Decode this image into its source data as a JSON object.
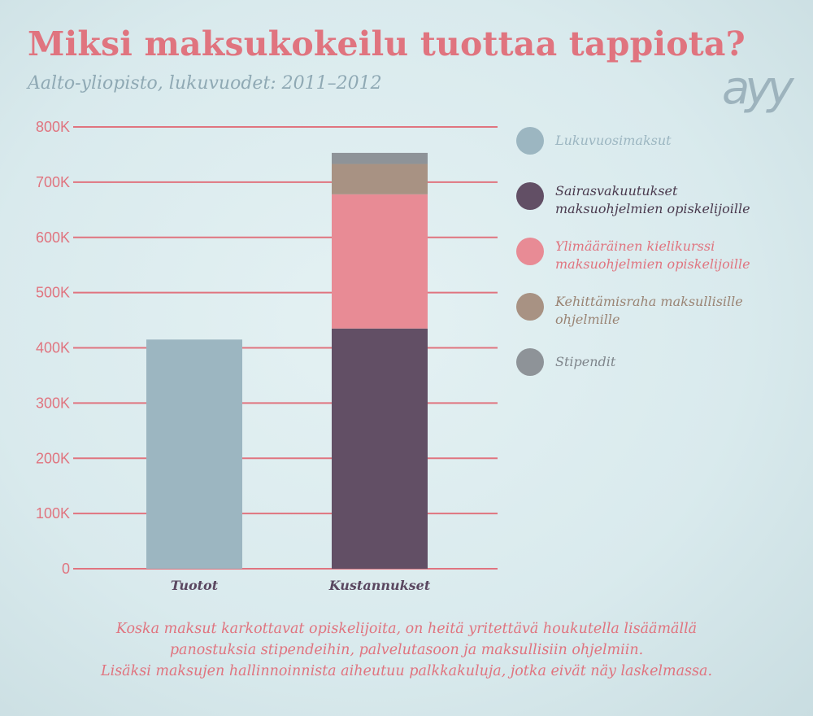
{
  "title": "Miksi maksukokeilu tuottaa tappiota?",
  "subtitle": "Aalto-yliopisto, lukuvuodet: 2011–2012",
  "logo": "ayy",
  "colors": {
    "lukuvuosimaksut": "#9cb6c1",
    "sairasvakuutukset": "#624f65",
    "kielikurssi": "#e88b95",
    "kehittamisraha": "#a89283",
    "stipendit": "#8e9398",
    "grid": "#e0747f"
  },
  "chart_data": {
    "type": "bar",
    "stacked": true,
    "categories": [
      "Tuotot",
      "Kustannukset"
    ],
    "ylim": [
      0,
      800000
    ],
    "yticks": [
      0,
      100000,
      200000,
      300000,
      400000,
      500000,
      600000,
      700000,
      800000
    ],
    "ytick_labels": [
      "0",
      "100K",
      "200K",
      "300K",
      "400K",
      "500K",
      "600K",
      "700K",
      "800K"
    ],
    "grid": true,
    "legend_position": "right",
    "series": [
      {
        "name": "Lukuvuosimaksut",
        "color": "#9cb6c1",
        "values": [
          415000,
          0
        ]
      },
      {
        "name": "Sairasvakuutukset maksuohjelmien opiskelijoille",
        "color": "#624f65",
        "values": [
          0,
          435000
        ]
      },
      {
        "name": "Ylimääräinen kielikurssi maksuohjelmien opiskelijoille",
        "color": "#e88b95",
        "values": [
          0,
          243000
        ]
      },
      {
        "name": "Kehittämisraha maksullisille ohjelmille",
        "color": "#a89283",
        "values": [
          0,
          55000
        ]
      },
      {
        "name": "Stipendit",
        "color": "#8e9398",
        "values": [
          0,
          20000
        ]
      }
    ]
  },
  "legend": [
    {
      "lines": [
        "Lukuvuosimaksut"
      ],
      "color": "#9cb6c1",
      "text_color": "#9cb6c1"
    },
    {
      "lines": [
        "Sairasvakuutukset",
        "maksuohjelmien opiskelijoille"
      ],
      "color": "#624f65",
      "text_color": "#4a3a4e"
    },
    {
      "lines": [
        "Ylimääräinen kielikurssi",
        "maksuohjelmien opiskelijoille"
      ],
      "color": "#e88b95",
      "text_color": "#e0747f"
    },
    {
      "lines": [
        "Kehittämisraha maksullisille",
        "ohjelmille"
      ],
      "color": "#a89283",
      "text_color": "#9a8474"
    },
    {
      "lines": [
        "Stipendit"
      ],
      "color": "#8e9398",
      "text_color": "#7f858b"
    }
  ],
  "footer": [
    "Koska maksut karkottavat opiskelijoita, on heitä yritettävä houkutella lisäämällä",
    "panostuksia stipendeihin, palvelutasoon ja maksullisiin ohjelmiin.",
    "Lisäksi maksujen hallinnoinnista aiheutuu palkkakuluja, jotka eivät näy laskelmassa."
  ]
}
